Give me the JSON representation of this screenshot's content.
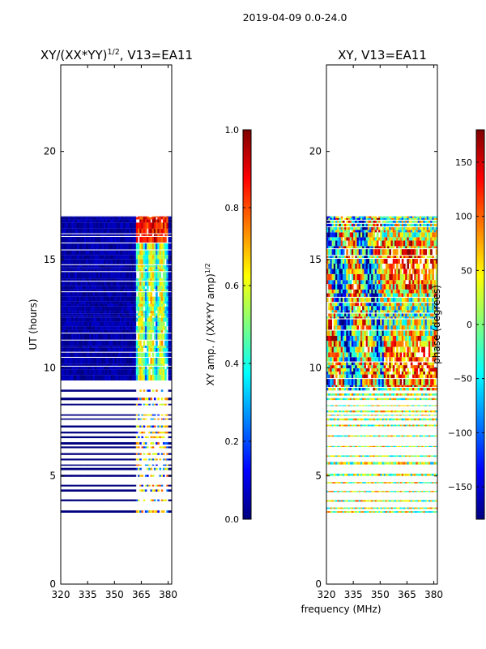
{
  "suptitle": "2019-04-09 0.0-24.0",
  "shared_xlabel": "frequency (MHz)",
  "colors": {
    "jet": [
      "#00007f",
      "#0000ff",
      "#007fff",
      "#00ffff",
      "#7fff7f",
      "#ffff00",
      "#ff7f00",
      "#ff0000",
      "#7f0000"
    ],
    "background": "#ffffff",
    "axis": "#000000"
  },
  "chart_data": [
    {
      "type": "heatmap",
      "title_main": "XY/(XX*YY)",
      "title_sup": "1/2",
      "title_tail": ", V13=EA11",
      "xlabel": "",
      "ylabel": "UT (hours)",
      "xlim": [
        320,
        382
      ],
      "ylim": [
        0,
        24
      ],
      "xticks": [
        320,
        335,
        350,
        365,
        380
      ],
      "yticks": [
        0,
        5,
        10,
        15,
        20
      ],
      "colormap": "jet",
      "colorbar": {
        "label_main": "XY amp. / (XX*YY amp)",
        "label_sup": "1/2",
        "range": [
          0.0,
          1.0
        ],
        "ticks": [
          "0.0",
          "0.2",
          "0.4",
          "0.6",
          "0.8",
          "1.0"
        ],
        "tick_values": [
          0.0,
          0.2,
          0.4,
          0.6,
          0.8,
          1.0
        ]
      },
      "data_time_range_hours": [
        3.3,
        17.0
      ],
      "main_band_hours": [
        8.9,
        17.0
      ],
      "bright_freq_range_mhz": [
        362,
        380
      ],
      "typical_values": {
        "off_band": 0.05,
        "bright_band": 0.45,
        "peak_near_16h": 0.9
      }
    },
    {
      "type": "heatmap",
      "title_main": "XY, V13=EA11",
      "xlabel": "",
      "ylabel": "",
      "xlim": [
        320,
        382
      ],
      "ylim": [
        0,
        24
      ],
      "xticks": [
        320,
        335,
        350,
        365,
        380
      ],
      "yticks": [
        0,
        5,
        10,
        15,
        20
      ],
      "colormap": "jet",
      "colorbar": {
        "label_main": "phase (degrees)",
        "range": [
          -180,
          180
        ],
        "ticks": [
          "150",
          "100",
          "50",
          "0",
          "−50",
          "−100",
          "−150"
        ],
        "tick_values": [
          150,
          100,
          50,
          0,
          -50,
          -100,
          -150
        ]
      },
      "data_time_range_hours": [
        3.3,
        17.0
      ],
      "main_band_hours": [
        8.9,
        17.0
      ]
    }
  ]
}
